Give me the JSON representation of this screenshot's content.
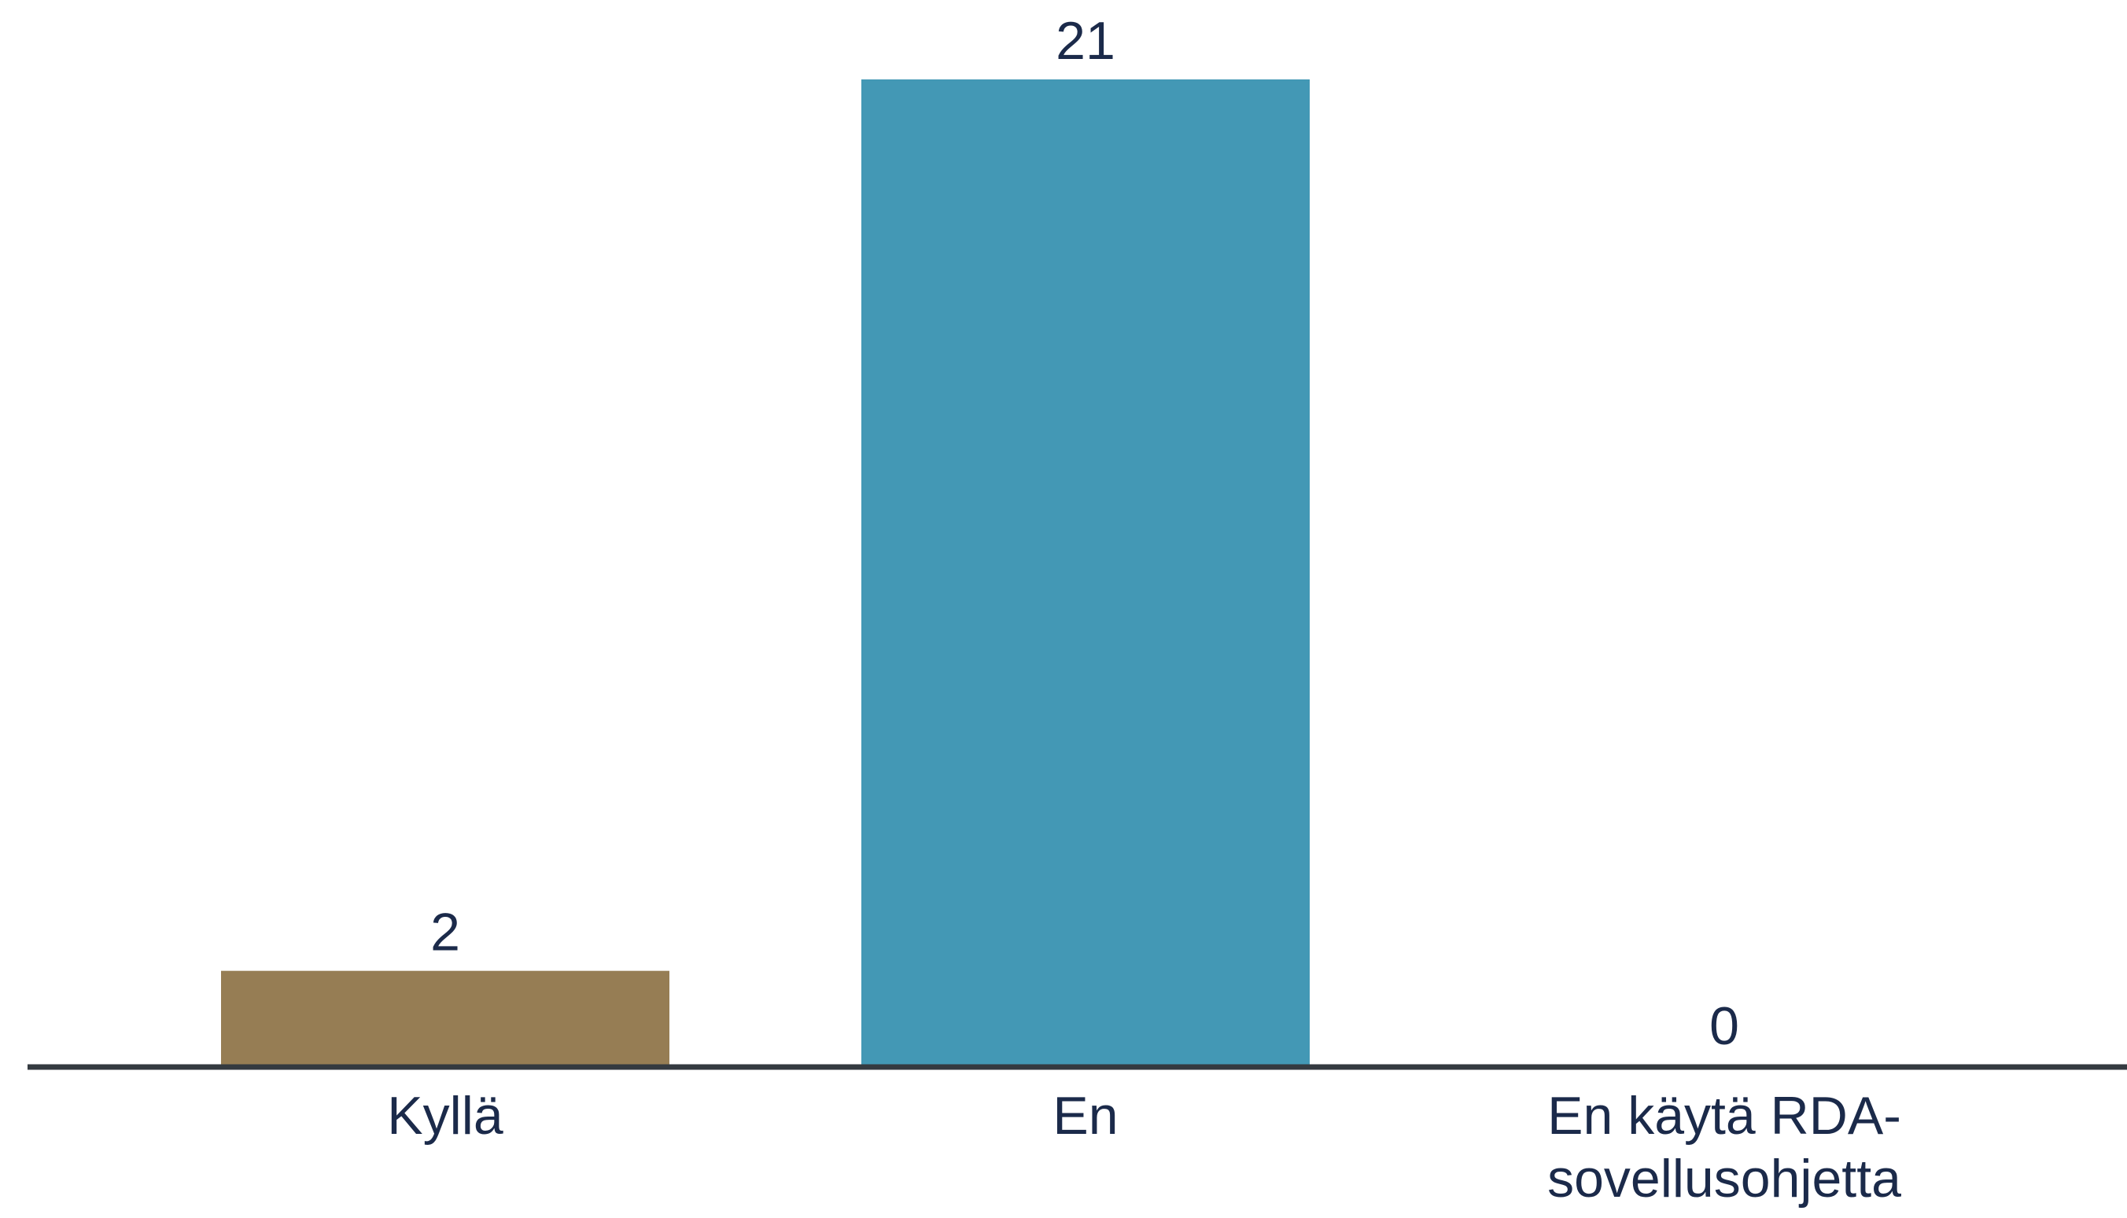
{
  "chart_data": {
    "type": "bar",
    "title": "",
    "xlabel": "",
    "ylabel": "",
    "categories": [
      [
        "Kyllä"
      ],
      [
        "En"
      ],
      [
        "En käytä RDA-",
        "sovellusohjetta"
      ]
    ],
    "values": [
      2,
      21,
      0
    ],
    "data_labels": [
      "2",
      "21",
      "0"
    ],
    "colors": [
      "#967d54",
      "#4398b5",
      "#4398b5"
    ],
    "ylim": [
      0,
      21
    ],
    "grid": false,
    "legend": "none",
    "axis_color": "#343a40",
    "text_color": "#1b2a4a"
  }
}
